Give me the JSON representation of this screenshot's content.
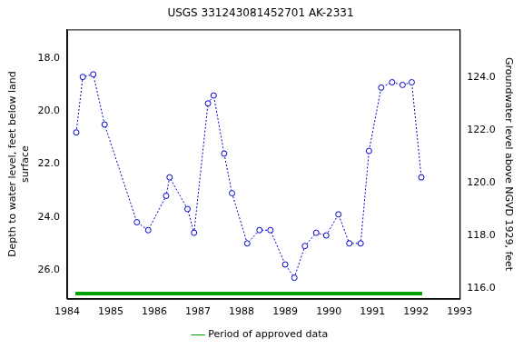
{
  "chart_data": {
    "type": "line",
    "title": "USGS 331243081452701 AK-2331",
    "y_label": [
      "Depth to water level, feet below land",
      "surface"
    ],
    "y2_label": "Groundwater level above NGVD 1929, feet",
    "xlim": [
      1984,
      1993
    ],
    "xticks": [
      1984,
      1985,
      1986,
      1987,
      1988,
      1989,
      1990,
      1991,
      1992,
      1993
    ],
    "ylim": [
      27.1,
      16.9
    ],
    "yticks": [
      {
        "value": 18,
        "label": "18.0"
      },
      {
        "value": 20,
        "label": "20.0"
      },
      {
        "value": 22,
        "label": "22.0"
      },
      {
        "value": 24,
        "label": "24.0"
      },
      {
        "value": 26,
        "label": "26.0"
      }
    ],
    "y2lim": [
      115.6,
      125.8
    ],
    "y2ticks": [
      {
        "value": 116,
        "label": "116.0"
      },
      {
        "value": 118,
        "label": "118.0"
      },
      {
        "value": 120,
        "label": "120.0"
      },
      {
        "value": 122,
        "label": "122.0"
      },
      {
        "value": 124,
        "label": "124.0"
      }
    ],
    "grid": false,
    "legend": "bottom",
    "series": [
      {
        "color": "#0000cc",
        "marker": "circle",
        "line_style": "dotted",
        "x": [
          1984.21,
          1984.36,
          1984.6,
          1984.86,
          1985.6,
          1985.86,
          1986.27,
          1986.35,
          1986.76,
          1986.91,
          1987.23,
          1987.36,
          1987.6,
          1987.78,
          1988.13,
          1988.41,
          1988.66,
          1989.0,
          1989.21,
          1989.45,
          1989.71,
          1989.94,
          1990.22,
          1990.47,
          1990.73,
          1990.92,
          1991.2,
          1991.45,
          1991.69,
          1991.9,
          1992.12
        ],
        "values": [
          20.8,
          18.7,
          18.6,
          20.5,
          24.2,
          24.5,
          23.2,
          22.5,
          23.7,
          24.6,
          19.7,
          19.4,
          21.6,
          23.1,
          25.0,
          24.5,
          24.5,
          25.8,
          26.3,
          25.1,
          24.6,
          24.7,
          23.9,
          25.0,
          25.0,
          21.5,
          19.1,
          18.9,
          19.0,
          18.9,
          22.5
        ]
      },
      {
        "name": "Period of approved data",
        "color": "#00a000",
        "line_style": "solid",
        "x": [
          1984.19,
          1992.14
        ],
        "values": [
          26.9,
          26.9
        ]
      }
    ]
  }
}
